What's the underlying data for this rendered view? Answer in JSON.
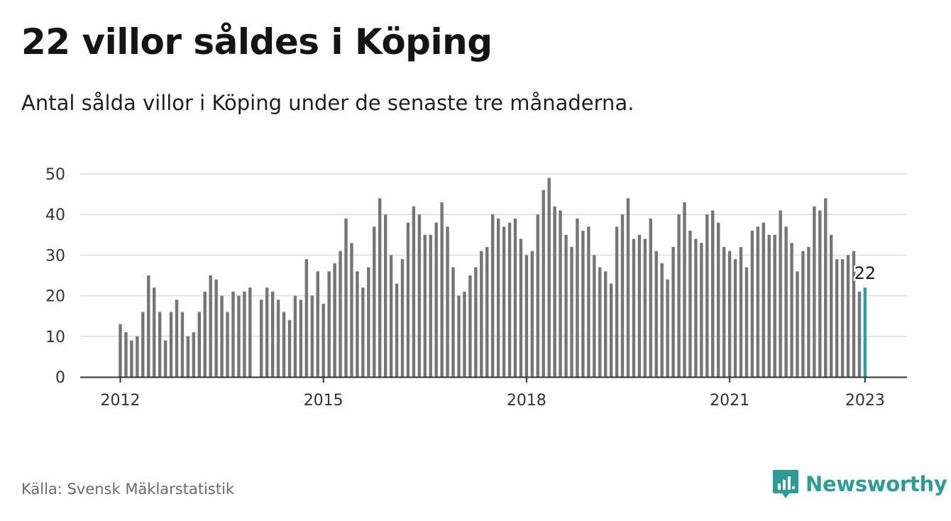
{
  "header": {
    "title": "22 villor såldes i Köping",
    "subtitle": "Antal sålda villor i Köping under de senaste tre månaderna."
  },
  "footer": {
    "source": "Källa: Svensk Mäklarstatistik",
    "brand": "Newsworthy"
  },
  "colors": {
    "bar": "#757575",
    "highlight": "#27a39a",
    "grid": "#dcdcdc",
    "axis": "#333333",
    "brand": "#2d9c96"
  },
  "icons": {
    "logo": "bar-chart-speech-bubble-icon"
  },
  "chart_data": {
    "type": "bar",
    "title": "22 villor såldes i Köping",
    "subtitle": "Antal sålda villor i Köping under de senaste tre månaderna.",
    "xlabel": "",
    "ylabel": "",
    "ylim": [
      0,
      50
    ],
    "y_ticks": [
      "0",
      "10",
      "20",
      "30",
      "40",
      "50"
    ],
    "x_ticks": [
      {
        "label": "2012",
        "index": 0
      },
      {
        "label": "2015",
        "index": 36
      },
      {
        "label": "2018",
        "index": 72
      },
      {
        "label": "2021",
        "index": 108
      },
      {
        "label": "2023",
        "index": 132
      }
    ],
    "grid": true,
    "legend": "none",
    "first_period": "2012-01",
    "last_period": "2023-01",
    "highlight_label": "22",
    "values": [
      13,
      11,
      9,
      10,
      16,
      25,
      22,
      16,
      9,
      16,
      19,
      16,
      10,
      11,
      16,
      21,
      25,
      24,
      20,
      16,
      21,
      20,
      21,
      22,
      null,
      19,
      22,
      21,
      19,
      16,
      14,
      20,
      19,
      29,
      20,
      26,
      18,
      26,
      28,
      31,
      39,
      33,
      26,
      22,
      27,
      37,
      44,
      40,
      30,
      23,
      29,
      38,
      42,
      40,
      35,
      35,
      38,
      43,
      37,
      27,
      20,
      21,
      25,
      27,
      31,
      32,
      40,
      39,
      37,
      38,
      39,
      34,
      30,
      31,
      40,
      46,
      49,
      42,
      41,
      35,
      32,
      39,
      36,
      37,
      30,
      27,
      26,
      23,
      37,
      40,
      44,
      34,
      35,
      34,
      39,
      31,
      28,
      24,
      32,
      40,
      43,
      36,
      34,
      33,
      40,
      41,
      38,
      32,
      31,
      29,
      32,
      27,
      36,
      37,
      38,
      35,
      35,
      41,
      37,
      33,
      26,
      31,
      32,
      42,
      41,
      44,
      35,
      29,
      29,
      30,
      31,
      21,
      22
    ]
  }
}
